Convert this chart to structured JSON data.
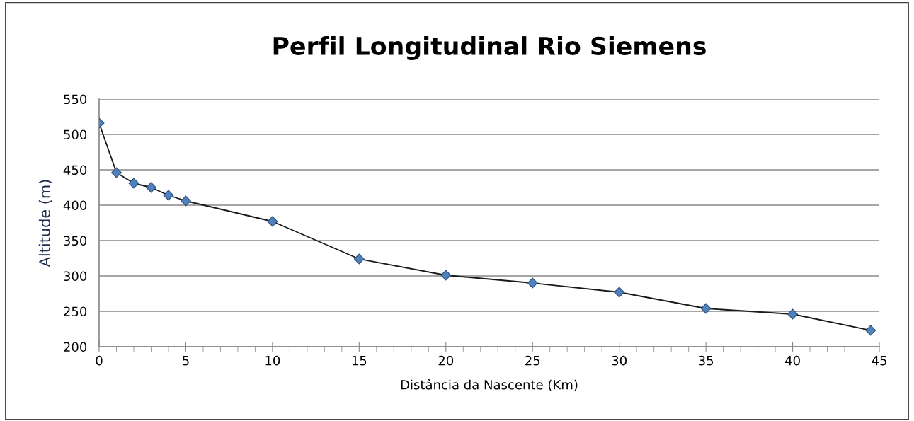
{
  "chart_data": {
    "type": "line",
    "title": "Perfil Longitudinal Rio Siemens",
    "xlabel": "Distância da Nascente (Km)",
    "ylabel": "Altitude (m)",
    "x": [
      0,
      1,
      2,
      3,
      4,
      5,
      10,
      15,
      20,
      25,
      30,
      35,
      40,
      44.5
    ],
    "series": [
      {
        "color": "#4f81bd",
        "values": [
          516,
          446,
          431,
          425,
          414,
          406,
          377,
          324,
          301,
          290,
          277,
          254,
          246,
          223
        ]
      }
    ],
    "xlim": [
      0,
      45
    ],
    "xticks": [
      0,
      5,
      10,
      15,
      20,
      25,
      30,
      35,
      40,
      45
    ],
    "ylim": [
      200,
      550
    ],
    "yticks": [
      200,
      250,
      300,
      350,
      400,
      450,
      500,
      550
    ],
    "grid": "y",
    "legend": false,
    "marker": "diamond",
    "line_style": "solid"
  }
}
